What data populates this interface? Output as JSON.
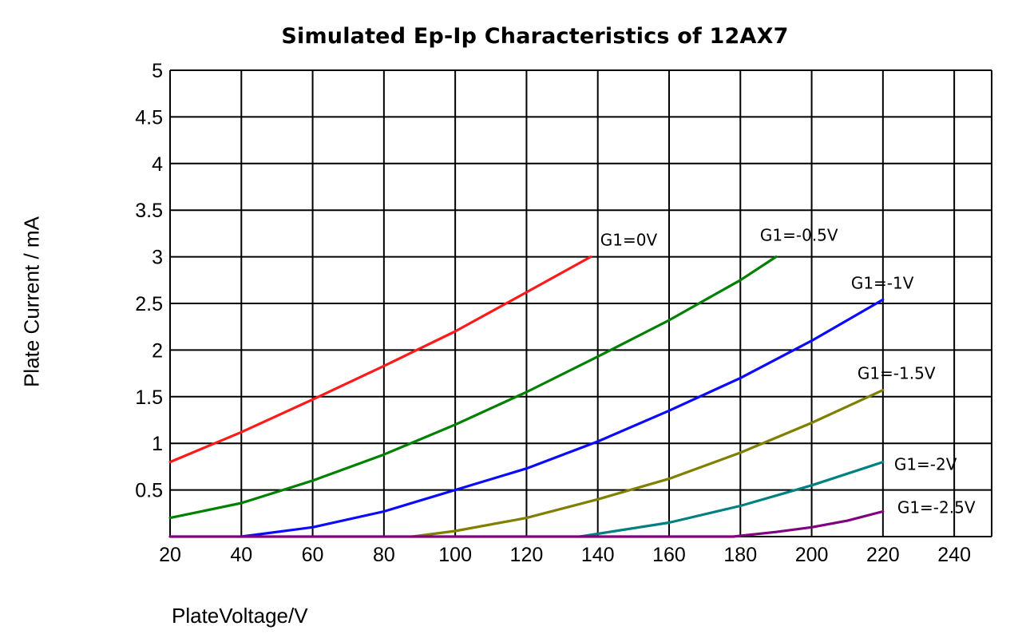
{
  "chart_data": {
    "type": "line",
    "title": "Simulated Ep-Ip Characteristics of 12AX7",
    "xlabel": "PlateVoltage/V",
    "ylabel": "Plate Current / mA",
    "xlim": [
      20,
      240
    ],
    "ylim": [
      0,
      5
    ],
    "x_ticks": [
      "20",
      "40",
      "60",
      "80",
      "100",
      "120",
      "140",
      "160",
      "180",
      "200",
      "220",
      "240"
    ],
    "y_ticks": [
      "0.5",
      "1",
      "1.5",
      "2",
      "2.5",
      "3",
      "3.5",
      "4",
      "4.5",
      "5"
    ],
    "grid": true,
    "series": [
      {
        "name": "G1=0V",
        "color": "#ff1a1a",
        "x": [
          20,
          40,
          60,
          80,
          100,
          120,
          138
        ],
        "y": [
          0.8,
          1.12,
          1.47,
          1.83,
          2.2,
          2.62,
          3.0
        ]
      },
      {
        "name": "G1=-0.5V",
        "color": "#008000",
        "x": [
          20,
          40,
          60,
          80,
          100,
          120,
          140,
          160,
          180,
          190
        ],
        "y": [
          0.2,
          0.36,
          0.6,
          0.88,
          1.2,
          1.55,
          1.93,
          2.32,
          2.75,
          3.0
        ]
      },
      {
        "name": "G1=-1V",
        "color": "#0a0aff",
        "x": [
          40,
          60,
          80,
          100,
          120,
          140,
          160,
          180,
          200,
          220
        ],
        "y": [
          0.0,
          0.1,
          0.27,
          0.5,
          0.73,
          1.02,
          1.35,
          1.7,
          2.1,
          2.54
        ]
      },
      {
        "name": "G1=-1.5V",
        "color": "#808000",
        "x": [
          88,
          100,
          120,
          140,
          160,
          180,
          200,
          220
        ],
        "y": [
          0.0,
          0.06,
          0.2,
          0.4,
          0.62,
          0.9,
          1.22,
          1.57
        ]
      },
      {
        "name": "G1=-2V",
        "color": "#008080",
        "x": [
          135,
          140,
          160,
          180,
          200,
          220
        ],
        "y": [
          0.0,
          0.03,
          0.15,
          0.33,
          0.55,
          0.8
        ]
      },
      {
        "name": "G1=-2.5V",
        "color": "#800080",
        "x": [
          20,
          178,
          190,
          200,
          210,
          220
        ],
        "y": [
          0.0,
          0.0,
          0.05,
          0.1,
          0.17,
          0.27
        ]
      }
    ]
  }
}
